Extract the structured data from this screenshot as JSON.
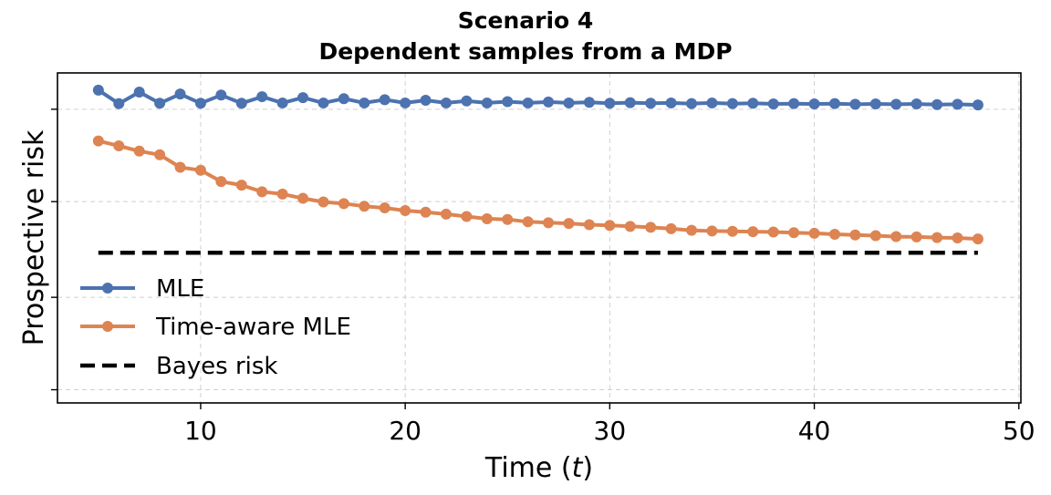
{
  "chart_data": {
    "type": "line",
    "title": "Scenario 4",
    "subtitle": "Dependent samples from a MDP",
    "xlabel_prefix": "Time (",
    "xlabel_var": "t",
    "xlabel_suffix": ")",
    "ylabel": "Prospective risk",
    "xlim": [
      3,
      50.1
    ],
    "ylim": [
      0.0,
      1.0
    ],
    "xticks": [
      10,
      20,
      30,
      40,
      50
    ],
    "xtick_labels": [
      "10",
      "20",
      "30",
      "40",
      "50"
    ],
    "yticks": [
      0.04,
      0.32,
      0.61,
      0.89
    ],
    "grid": true,
    "legend_position": "lower-left",
    "series": [
      {
        "name": "MLE",
        "color": "#4c72b0",
        "style": "line-marker",
        "x": [
          5,
          6,
          7,
          8,
          9,
          10,
          11,
          12,
          13,
          14,
          15,
          16,
          17,
          18,
          19,
          20,
          21,
          22,
          23,
          24,
          25,
          26,
          27,
          28,
          29,
          30,
          31,
          32,
          33,
          34,
          35,
          36,
          37,
          38,
          39,
          40,
          41,
          42,
          43,
          44,
          45,
          46,
          47,
          48
        ],
        "y": [
          0.948,
          0.907,
          0.942,
          0.908,
          0.936,
          0.908,
          0.933,
          0.908,
          0.928,
          0.909,
          0.925,
          0.909,
          0.922,
          0.909,
          0.919,
          0.909,
          0.917,
          0.909,
          0.915,
          0.909,
          0.913,
          0.909,
          0.912,
          0.909,
          0.911,
          0.908,
          0.91,
          0.908,
          0.909,
          0.907,
          0.909,
          0.907,
          0.908,
          0.906,
          0.907,
          0.906,
          0.907,
          0.905,
          0.906,
          0.905,
          0.906,
          0.904,
          0.905,
          0.903
        ]
      },
      {
        "name": "Time-aware MLE",
        "color": "#dd8452",
        "style": "line-marker",
        "x": [
          5,
          6,
          7,
          8,
          9,
          10,
          11,
          12,
          13,
          14,
          15,
          16,
          17,
          18,
          19,
          20,
          21,
          22,
          23,
          24,
          25,
          26,
          27,
          28,
          29,
          30,
          31,
          32,
          33,
          34,
          35,
          36,
          37,
          38,
          39,
          40,
          41,
          42,
          43,
          44,
          45,
          46,
          47,
          48
        ],
        "y": [
          0.794,
          0.779,
          0.763,
          0.752,
          0.714,
          0.705,
          0.671,
          0.66,
          0.64,
          0.633,
          0.62,
          0.609,
          0.604,
          0.596,
          0.591,
          0.583,
          0.578,
          0.572,
          0.565,
          0.558,
          0.556,
          0.549,
          0.546,
          0.544,
          0.54,
          0.538,
          0.535,
          0.532,
          0.528,
          0.523,
          0.521,
          0.52,
          0.519,
          0.518,
          0.516,
          0.514,
          0.511,
          0.509,
          0.507,
          0.504,
          0.503,
          0.501,
          0.5,
          0.497
        ]
      },
      {
        "name": "Bayes risk",
        "color": "#000000",
        "style": "dashed",
        "x": [
          5,
          48
        ],
        "y": [
          0.455,
          0.455
        ]
      }
    ]
  }
}
